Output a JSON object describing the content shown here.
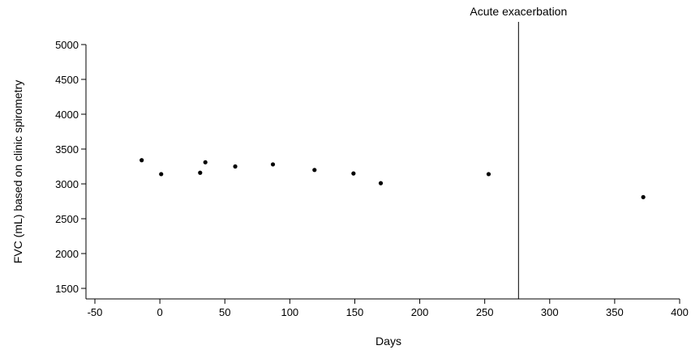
{
  "chart_data": {
    "type": "scatter",
    "xlabel": "Days",
    "ylabel": "FVC (mL) based on clinic spirometry",
    "xlim": [
      -58,
      400
    ],
    "ylim": [
      1340,
      5000
    ],
    "xticks": [
      -50,
      0,
      50,
      100,
      150,
      200,
      250,
      300,
      350,
      400
    ],
    "yticks": [
      1500,
      2000,
      2500,
      3000,
      3500,
      4000,
      4500,
      5000
    ],
    "grid": false,
    "points": [
      {
        "x": -14,
        "y": 3340
      },
      {
        "x": 1,
        "y": 3140
      },
      {
        "x": 31,
        "y": 3160
      },
      {
        "x": 35,
        "y": 3310
      },
      {
        "x": 58,
        "y": 3250
      },
      {
        "x": 87,
        "y": 3280
      },
      {
        "x": 119,
        "y": 3200
      },
      {
        "x": 149,
        "y": 3150
      },
      {
        "x": 170,
        "y": 3010
      },
      {
        "x": 253,
        "y": 3140
      },
      {
        "x": 372,
        "y": 2810
      }
    ],
    "annotation": {
      "x": 276,
      "label": "Acute exacerbation"
    }
  }
}
